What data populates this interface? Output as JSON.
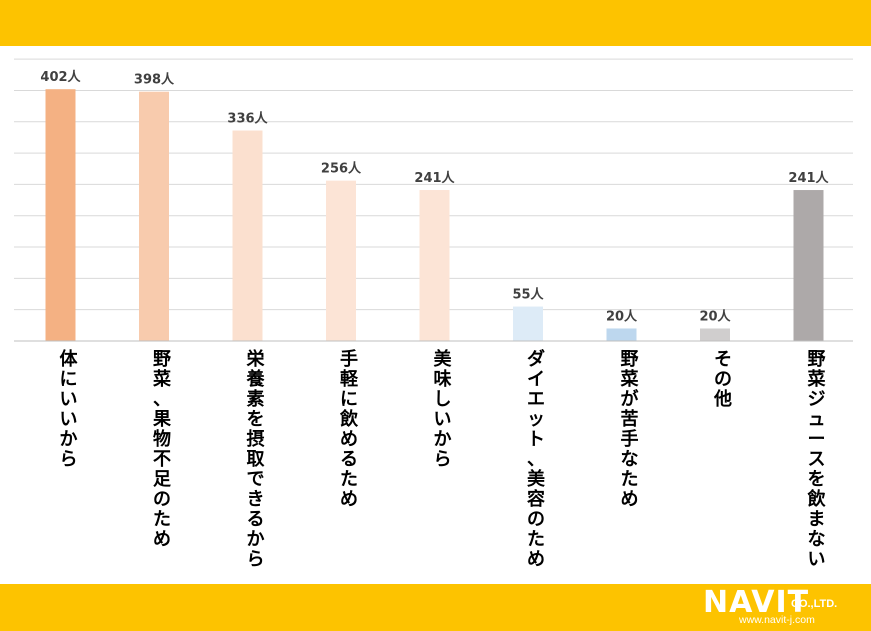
{
  "colors": {
    "band": "#FDC300",
    "grid": "#D9D9D9",
    "axis": "#BFBFBF",
    "text": "#404040"
  },
  "logo": {
    "brand": "NAVIT",
    "suffix": "CO.,LTD.",
    "url": "www.navit-j.com"
  },
  "chart_data": {
    "type": "bar",
    "categories": [
      "体にいいから",
      "野菜、果物不足のため",
      "栄養素を摂取できるから",
      "手軽に飲めるため",
      "美味しいから",
      "ダイエット、美容のため",
      "野菜が苦手なため",
      "その他",
      "野菜ジュースを飲まない"
    ],
    "values": [
      402,
      398,
      336,
      256,
      241,
      55,
      20,
      20,
      241
    ],
    "value_labels": [
      "402人",
      "398人",
      "336人",
      "256人",
      "241人",
      "55人",
      "20人",
      "20人",
      "241人"
    ],
    "bar_colors": [
      "#F4B183",
      "#F8CBAD",
      "#FBE0CF",
      "#FCE4D6",
      "#FCE4D6",
      "#DDEBF7",
      "#BDD7EE",
      "#D0CECE",
      "#ADA9A9"
    ],
    "ylim": [
      0,
      450
    ],
    "grid_step": 50,
    "gridlines": true,
    "legend": "none"
  }
}
